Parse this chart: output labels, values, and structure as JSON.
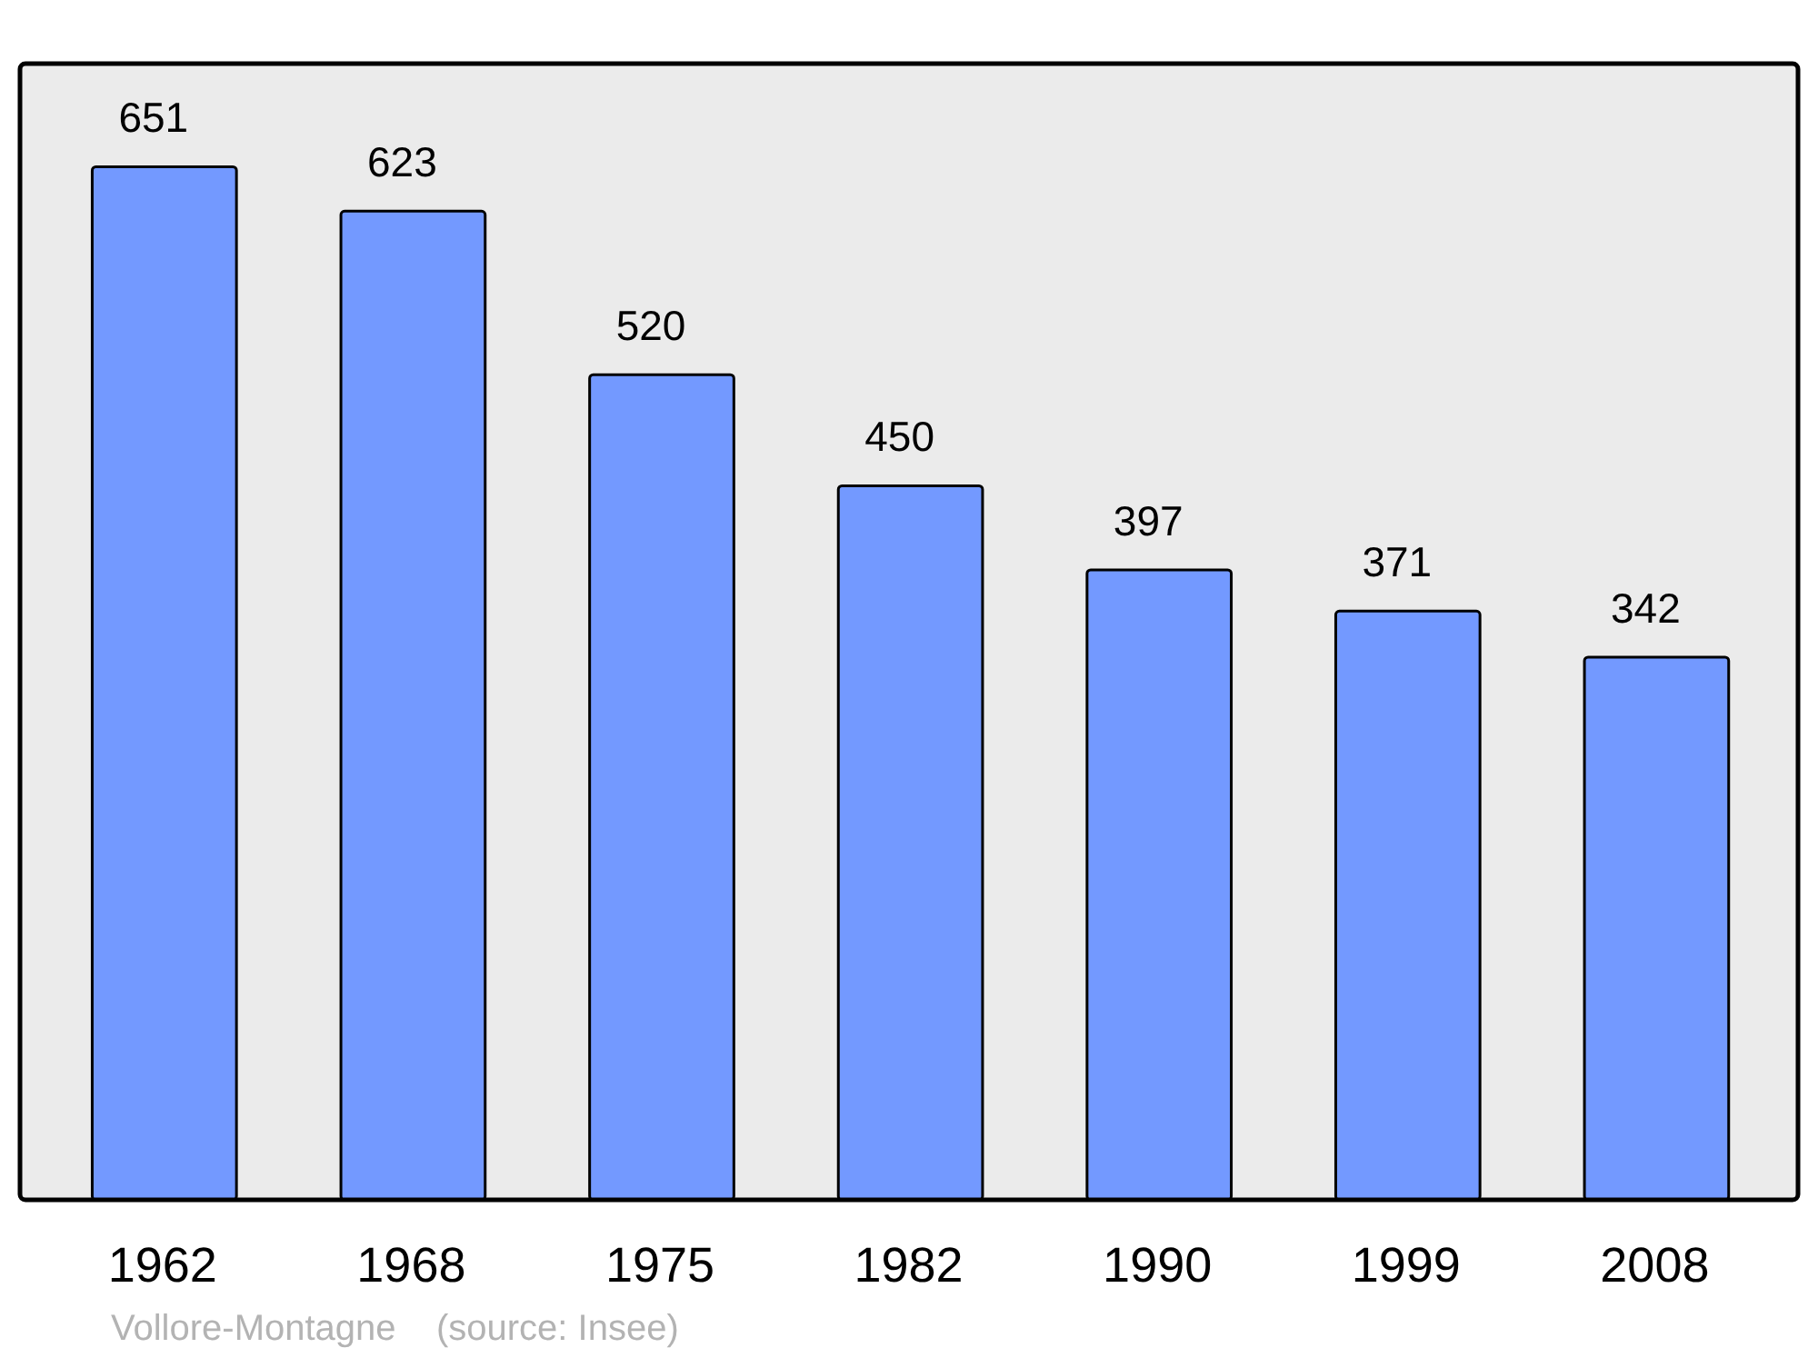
{
  "chart_data": {
    "type": "bar",
    "categories": [
      "1962",
      "1968",
      "1975",
      "1982",
      "1990",
      "1999",
      "2008"
    ],
    "values": [
      651,
      623,
      520,
      450,
      397,
      371,
      342
    ],
    "color": "#7399ff",
    "ylim": [
      0,
      716
    ],
    "data_labels": true,
    "grid": false,
    "tick_labels": "x",
    "annotations": [
      "Vollore-Montagne    (source: Insee)"
    ]
  }
}
